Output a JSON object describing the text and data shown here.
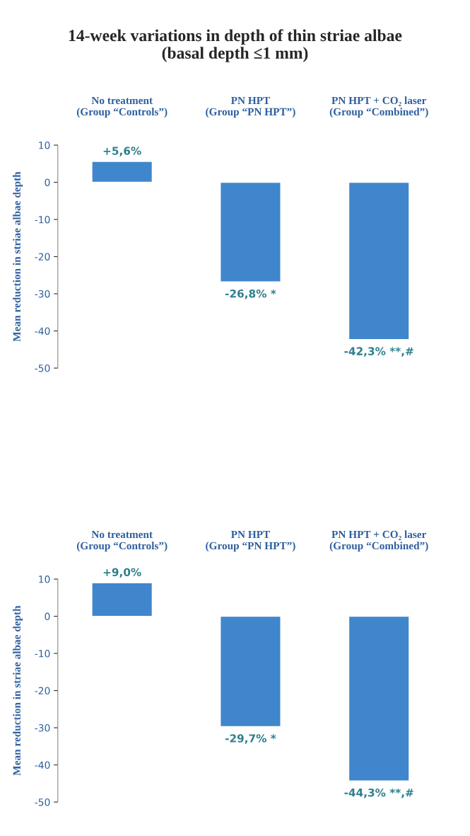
{
  "chart_data": [
    {
      "type": "bar",
      "title": "14-week variations in depth of thin striae albae\n(basal depth ≤1 mm)",
      "ylabel": "Mean reduction in striae albae depth",
      "categories": [
        "No treatment\n(Group “Controls”)",
        "PN HPT\n(Group “PN HPT”)",
        "PN HPT + CO₂ laser\n(Group “Combined”)"
      ],
      "series": [
        {
          "color": "#3f86cc",
          "values": [
            5.6,
            -26.8,
            -42.3
          ],
          "value_labels": [
            "+5,6%",
            "-26,8% *",
            "-42,3% **,#"
          ]
        }
      ],
      "ylim": [
        -50,
        10
      ],
      "yticks": [
        -50,
        -40,
        -30,
        -20,
        -10,
        0,
        10
      ]
    },
    {
      "type": "bar",
      "ylabel": "Mean reduction in striae albae depth",
      "categories": [
        "No treatment\n(Group “Controls”)",
        "PN HPT\n(Group “PN HPT”)",
        "PN HPT + CO₂ laser\n(Group “Combined”)"
      ],
      "series": [
        {
          "color": "#3f86cc",
          "values": [
            9.0,
            -29.7,
            -44.3
          ],
          "value_labels": [
            "+9,0%",
            "-29,7% *",
            "-44,3% **,#"
          ]
        }
      ],
      "ylim": [
        -50,
        10
      ],
      "yticks": [
        -50,
        -40,
        -30,
        -20,
        -10,
        0,
        10
      ]
    }
  ]
}
